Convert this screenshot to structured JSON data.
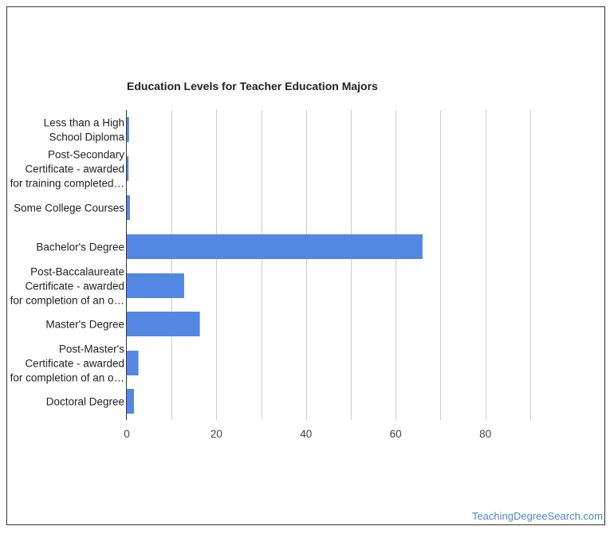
{
  "chart_data": {
    "type": "bar",
    "orientation": "horizontal",
    "title": "Education Levels for Teacher Education Majors",
    "xlabel": "",
    "ylabel": "",
    "xlim": [
      0,
      100
    ],
    "x_ticks": [
      0,
      20,
      40,
      60,
      80
    ],
    "grid": true,
    "categories": [
      [
        "Less than a High",
        "School Diploma"
      ],
      [
        "Post-Secondary",
        "Certificate - awarded",
        "for training completed…"
      ],
      [
        "Some College Courses"
      ],
      [
        "Bachelor's Degree"
      ],
      [
        "Post-Baccalaureate",
        "Certificate - awarded",
        "for completion of an o…"
      ],
      [
        "Master's Degree"
      ],
      [
        "Post-Master's",
        "Certificate - awarded",
        "for completion of an o…"
      ],
      [
        "Doctoral Degree"
      ]
    ],
    "values": [
      0.5,
      0.4,
      0.7,
      66.0,
      12.8,
      16.3,
      2.6,
      1.6
    ],
    "bar_color": "#5387e3",
    "grid_color": "#cccccc"
  },
  "watermark": "TeachingDegreeSearch.com"
}
